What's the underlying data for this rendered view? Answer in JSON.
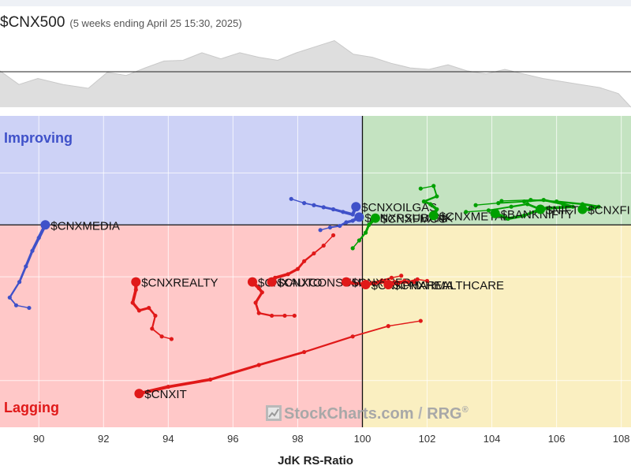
{
  "header": {
    "symbol": "$CNX500",
    "subtitle": "(5 weeks ending April 25 15:30, 2025)"
  },
  "chart_data": {
    "type": "scatter",
    "title": "",
    "xlabel": "JdK RS-Ratio",
    "ylabel": "",
    "xlim": [
      88.8,
      108.3
    ],
    "ylim": [
      96.1,
      102.1
    ],
    "x_ticks": [
      90,
      92,
      94,
      96,
      98,
      100,
      102,
      104,
      106,
      108
    ],
    "grid": true,
    "quadrants": {
      "improving": {
        "label": "Improving",
        "color": "#cdd2f6"
      },
      "leading": {
        "label": "",
        "color": "#c4e3c1"
      },
      "weakening": {
        "label": "",
        "color": "#faefc1"
      },
      "lagging": {
        "label": "Lagging",
        "color": "#ffc8c8"
      }
    },
    "label_colors": {
      "improving": "#3f51c9",
      "lagging": "#e01919"
    },
    "watermark": {
      "text": "StockCharts.com",
      "suffix": "RRG",
      "reg": "®"
    },
    "benchmark_line": {
      "x": [
        0,
        0.03,
        0.06,
        0.1,
        0.14,
        0.17,
        0.2,
        0.23,
        0.26,
        0.29,
        0.32,
        0.35,
        0.38,
        0.41,
        0.44,
        0.47,
        0.5,
        0.53,
        0.56,
        0.59,
        0.62,
        0.65,
        0.68,
        0.71,
        0.74,
        0.77,
        0.8,
        0.83,
        0.86,
        0.89,
        0.92,
        0.95,
        0.98,
        1.0
      ],
      "y": [
        0.48,
        0.3,
        0.38,
        0.3,
        0.25,
        0.46,
        0.42,
        0.52,
        0.61,
        0.62,
        0.72,
        0.64,
        0.72,
        0.66,
        0.62,
        0.72,
        0.8,
        0.88,
        0.7,
        0.66,
        0.58,
        0.52,
        0.5,
        0.56,
        0.48,
        0.44,
        0.5,
        0.44,
        0.38,
        0.34,
        0.3,
        0.26,
        0.18,
        0.0
      ]
    },
    "series": [
      {
        "name": "$CNXOILGAS",
        "group": "improving",
        "color": "#3f51c9",
        "x": [
          97.8,
          98.2,
          98.5,
          98.8,
          99.1,
          99.4,
          99.7,
          99.8
        ],
        "y": [
          100.5,
          100.42,
          100.38,
          100.34,
          100.3,
          100.25,
          100.2,
          100.35
        ]
      },
      {
        "name": "$CNXPSUBANK",
        "group": "improving",
        "color": "#3f51c9",
        "x": [
          98.7,
          99.0,
          99.3,
          99.5,
          99.7,
          99.9
        ],
        "y": [
          99.9,
          99.95,
          99.98,
          100.05,
          100.08,
          100.15
        ]
      },
      {
        "name": "$CNXMEDIA",
        "group": "improving",
        "color": "#3f51c9",
        "x": [
          89.7,
          89.3,
          89.1,
          89.4,
          89.6,
          89.8,
          90.0,
          90.2
        ],
        "y": [
          98.4,
          98.45,
          98.6,
          98.9,
          99.2,
          99.5,
          99.75,
          100.0
        ]
      },
      {
        "name": "$CNXFMCG",
        "group": "leading",
        "color": "#00a000",
        "x": [
          99.7,
          99.9,
          100.1,
          100.2,
          100.4
        ],
        "y": [
          99.55,
          99.7,
          99.85,
          100.0,
          100.13
        ]
      },
      {
        "name": "$CNXMETAL",
        "group": "leading",
        "color": "#00a000",
        "x": [
          101.8,
          102.2,
          102.3,
          101.9,
          102.1,
          102.3,
          102.2
        ],
        "y": [
          100.7,
          100.75,
          100.55,
          100.45,
          100.4,
          100.3,
          100.18
        ]
      },
      {
        "name": "$BANKNIFTY",
        "group": "leading",
        "color": "#00a000",
        "x": [
          103.2,
          103.9,
          104.6,
          105.1,
          105.5,
          105.0,
          104.5,
          104.1
        ],
        "y": [
          100.25,
          100.28,
          100.35,
          100.4,
          100.3,
          100.18,
          100.12,
          100.22
        ]
      },
      {
        "name": "$NIFTY",
        "group": "leading",
        "color": "#00a000",
        "x": [
          103.5,
          104.2,
          105.0,
          105.6,
          106.2,
          106.5,
          105.7,
          105.5
        ],
        "y": [
          100.38,
          100.42,
          100.45,
          100.48,
          100.4,
          100.35,
          100.32,
          100.3
        ]
      },
      {
        "name": "$CNXFIN",
        "group": "leading",
        "color": "#00a000",
        "x": [
          104.3,
          105.2,
          106.0,
          106.8,
          107.3,
          107.0,
          106.8
        ],
        "y": [
          100.46,
          100.48,
          100.45,
          100.4,
          100.35,
          100.3,
          100.3
        ]
      },
      {
        "name": "$CNXREALTY",
        "group": "lagging",
        "color": "#e01919",
        "x": [
          94.1,
          93.8,
          93.5,
          93.6,
          93.4,
          93.1,
          92.9,
          93.0,
          93.0
        ],
        "y": [
          97.8,
          97.85,
          98.0,
          98.25,
          98.4,
          98.35,
          98.5,
          98.75,
          98.9
        ]
      },
      {
        "name": "$CNXAUTO",
        "group": "lagging",
        "color": "#e01919",
        "x": [
          97.9,
          97.6,
          97.2,
          96.8,
          96.7,
          96.9,
          96.8,
          96.6
        ],
        "y": [
          98.25,
          98.25,
          98.25,
          98.3,
          98.5,
          98.7,
          98.78,
          98.9
        ]
      },
      {
        "name": "$CNXCONSUM",
        "group": "lagging",
        "color": "#e01919",
        "x": [
          99.1,
          98.8,
          98.5,
          98.2,
          98.0,
          97.7,
          97.3,
          97.2
        ],
        "y": [
          99.8,
          99.6,
          99.45,
          99.3,
          99.15,
          99.05,
          98.98,
          98.9
        ]
      },
      {
        "name": "$CNXINFRA",
        "group": "lagging",
        "color": "#e01919",
        "x": [
          101.2,
          100.9,
          100.6,
          100.3,
          100.0,
          99.7,
          99.5
        ],
        "y": [
          99.02,
          98.98,
          98.93,
          98.88,
          98.86,
          98.88,
          98.9
        ]
      },
      {
        "name": "$CNXPHARMA",
        "group": "lagging",
        "color": "#e01919",
        "x": [
          101.6,
          101.3,
          101.0,
          100.7,
          100.4,
          100.1
        ],
        "y": [
          98.9,
          98.92,
          98.9,
          98.9,
          98.88,
          98.85
        ]
      },
      {
        "name": "$CNXHEALTHCARE",
        "group": "lagging",
        "color": "#e01919",
        "x": [
          102.0,
          101.7,
          101.4,
          101.1,
          100.8
        ],
        "y": [
          98.92,
          98.95,
          98.9,
          98.88,
          98.85
        ]
      },
      {
        "name": "$CNXIT",
        "group": "lagging",
        "color": "#e01919",
        "x": [
          101.8,
          100.8,
          99.7,
          98.2,
          96.8,
          95.3,
          94.0,
          93.1
        ],
        "y": [
          98.15,
          98.05,
          97.85,
          97.55,
          97.3,
          97.02,
          96.88,
          96.75
        ]
      }
    ]
  }
}
